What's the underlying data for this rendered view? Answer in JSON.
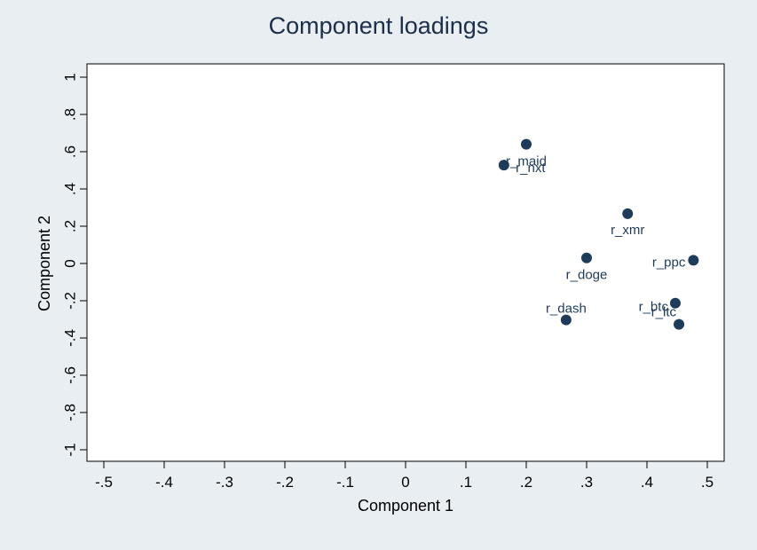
{
  "chart_data": {
    "type": "scatter",
    "title": "Component loadings",
    "xlabel": "Component 1",
    "ylabel": "Component 2",
    "xlim": [
      -0.5,
      0.5
    ],
    "ylim": [
      -1,
      1
    ],
    "xticks": [
      -0.5,
      -0.4,
      -0.3,
      -0.2,
      -0.1,
      0,
      0.1,
      0.2,
      0.3,
      0.4,
      0.5
    ],
    "xtick_labels": [
      "-.5",
      "-.4",
      "-.3",
      "-.2",
      "-.1",
      "0",
      ".1",
      ".2",
      ".3",
      ".4",
      ".5"
    ],
    "yticks": [
      -1,
      -0.8,
      -0.6,
      -0.4,
      -0.2,
      0,
      0.2,
      0.4,
      0.6,
      0.8,
      1
    ],
    "ytick_labels": [
      "-1",
      "-.8",
      "-.6",
      "-.4",
      "-.2",
      "0",
      ".2",
      ".4",
      ".6",
      ".8",
      "1"
    ],
    "grid": false,
    "marker_color": "#1f3b5a",
    "points": [
      {
        "label": "r_maid",
        "x": 0.2,
        "y": 0.64
      },
      {
        "label": "r_nxt",
        "x": 0.163,
        "y": 0.528
      },
      {
        "label": "r_xmr",
        "x": 0.368,
        "y": 0.267
      },
      {
        "label": "r_ppc",
        "x": 0.477,
        "y": 0.017
      },
      {
        "label": "r_doge",
        "x": 0.3,
        "y": 0.03
      },
      {
        "label": "r_btc",
        "x": 0.447,
        "y": -0.213
      },
      {
        "label": "r_ltc",
        "x": 0.453,
        "y": -0.327
      },
      {
        "label": "r_dash",
        "x": 0.266,
        "y": -0.303
      }
    ]
  }
}
